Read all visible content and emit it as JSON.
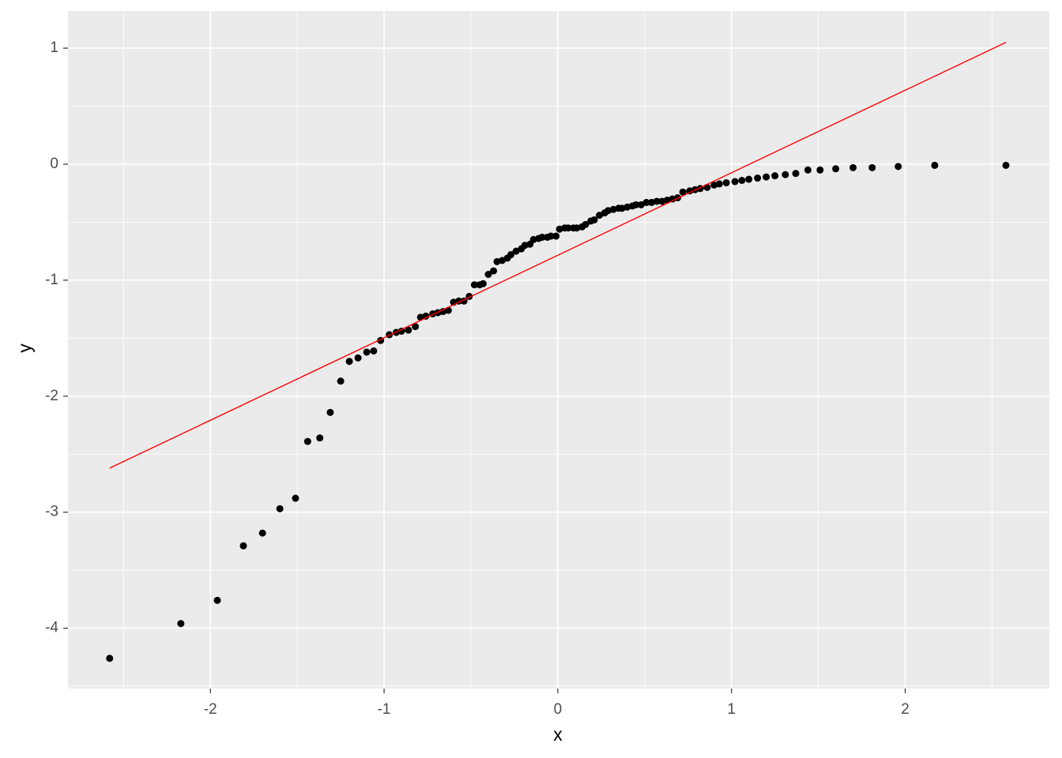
{
  "chart_data": {
    "type": "scatter",
    "x_label": "x",
    "y_label": "y",
    "x": [
      -2.58,
      -2.17,
      -1.96,
      -1.81,
      -1.7,
      -1.6,
      -1.51,
      -1.44,
      -1.37,
      -1.31,
      -1.25,
      -1.2,
      -1.15,
      -1.1,
      -1.06,
      -1.02,
      -0.97,
      -0.93,
      -0.9,
      -0.86,
      -0.82,
      -0.79,
      -0.76,
      -0.72,
      -0.69,
      -0.66,
      -0.63,
      -0.6,
      -0.57,
      -0.54,
      -0.51,
      -0.48,
      -0.45,
      -0.43,
      -0.4,
      -0.37,
      -0.35,
      -0.32,
      -0.29,
      -0.27,
      -0.24,
      -0.21,
      -0.19,
      -0.16,
      -0.14,
      -0.11,
      -0.09,
      -0.06,
      -0.04,
      -0.01,
      0.01,
      0.04,
      0.06,
      0.09,
      0.11,
      0.14,
      0.16,
      0.19,
      0.21,
      0.24,
      0.27,
      0.29,
      0.32,
      0.35,
      0.37,
      0.4,
      0.43,
      0.45,
      0.48,
      0.51,
      0.54,
      0.57,
      0.6,
      0.63,
      0.66,
      0.69,
      0.72,
      0.76,
      0.79,
      0.82,
      0.86,
      0.9,
      0.93,
      0.97,
      1.02,
      1.06,
      1.1,
      1.15,
      1.2,
      1.25,
      1.31,
      1.37,
      1.44,
      1.51,
      1.6,
      1.7,
      1.81,
      1.96,
      2.17,
      2.58
    ],
    "values": [
      -4.26,
      -3.96,
      -3.76,
      -3.29,
      -3.18,
      -2.97,
      -2.88,
      -2.39,
      -2.36,
      -2.14,
      -1.87,
      -1.7,
      -1.67,
      -1.62,
      -1.61,
      -1.52,
      -1.47,
      -1.45,
      -1.44,
      -1.43,
      -1.4,
      -1.32,
      -1.31,
      -1.29,
      -1.28,
      -1.27,
      -1.26,
      -1.19,
      -1.18,
      -1.18,
      -1.14,
      -1.04,
      -1.04,
      -1.03,
      -0.95,
      -0.92,
      -0.84,
      -0.83,
      -0.81,
      -0.78,
      -0.75,
      -0.73,
      -0.7,
      -0.69,
      -0.65,
      -0.64,
      -0.63,
      -0.63,
      -0.62,
      -0.62,
      -0.56,
      -0.55,
      -0.55,
      -0.55,
      -0.55,
      -0.54,
      -0.52,
      -0.49,
      -0.48,
      -0.44,
      -0.42,
      -0.4,
      -0.39,
      -0.38,
      -0.38,
      -0.37,
      -0.36,
      -0.35,
      -0.35,
      -0.33,
      -0.33,
      -0.32,
      -0.32,
      -0.31,
      -0.3,
      -0.29,
      -0.24,
      -0.23,
      -0.22,
      -0.21,
      -0.2,
      -0.18,
      -0.17,
      -0.16,
      -0.15,
      -0.14,
      -0.13,
      -0.12,
      -0.11,
      -0.1,
      -0.09,
      -0.08,
      -0.05,
      -0.05,
      -0.04,
      -0.03,
      -0.03,
      -0.02,
      -0.01,
      -0.01
    ],
    "point_color": "#000000",
    "reference_line": {
      "x": [
        -2.58,
        2.58
      ],
      "y": [
        -2.62,
        1.05
      ],
      "color": "#ff0000"
    },
    "xlim": [
      -2.82,
      2.83
    ],
    "ylim": [
      -4.52,
      1.32
    ],
    "xticks": [
      -2,
      -1,
      0,
      1,
      2
    ],
    "yticks": [
      -4,
      -3,
      -2,
      -1,
      0,
      1
    ],
    "x_minor": [
      -2.5,
      -1.5,
      -0.5,
      0.5,
      1.5,
      2.5
    ],
    "y_minor": [
      -4.5,
      -3.5,
      -2.5,
      -1.5,
      -0.5,
      0.5
    ],
    "grid": true,
    "panel_color": "#ebebeb"
  }
}
